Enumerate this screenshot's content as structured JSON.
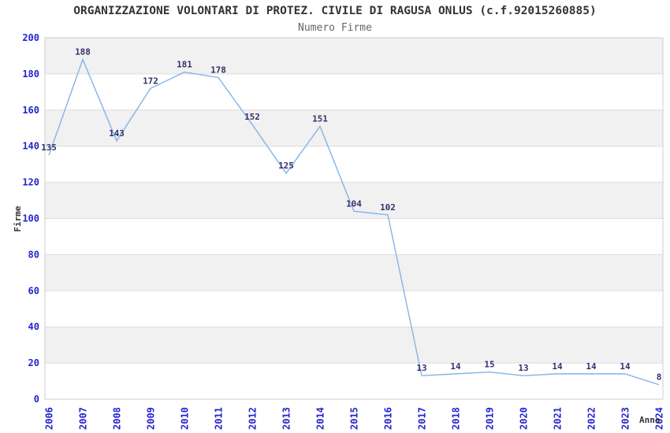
{
  "chart_data": {
    "type": "line",
    "title": "ORGANIZZAZIONE VOLONTARI DI PROTEZ. CIVILE DI RAGUSA ONLUS (c.f.92015260885)",
    "subtitle": "Numero Firme",
    "xlabel": "Anno",
    "ylabel": "Firme",
    "categories": [
      "2006",
      "2007",
      "2008",
      "2009",
      "2010",
      "2011",
      "2012",
      "2013",
      "2014",
      "2015",
      "2016",
      "2017",
      "2018",
      "2019",
      "2020",
      "2021",
      "2022",
      "2023",
      "2024"
    ],
    "values": [
      135,
      188,
      143,
      172,
      181,
      178,
      152,
      125,
      151,
      104,
      102,
      13,
      14,
      15,
      13,
      14,
      14,
      14,
      8
    ],
    "ylim": [
      0,
      200
    ],
    "ytick_step": 20,
    "grid": true,
    "legend": "none",
    "x_tick_rotation": -90,
    "colors": {
      "line": "#82b4e8",
      "tick_label": "#2424cc",
      "data_label": "#32326e",
      "band": "#f1f1f1",
      "gridline": "#dddddd",
      "border": "#cccccc",
      "title": "#333333",
      "subtitle": "#666666",
      "axis_title": "#333333",
      "background": "#ffffff"
    }
  }
}
